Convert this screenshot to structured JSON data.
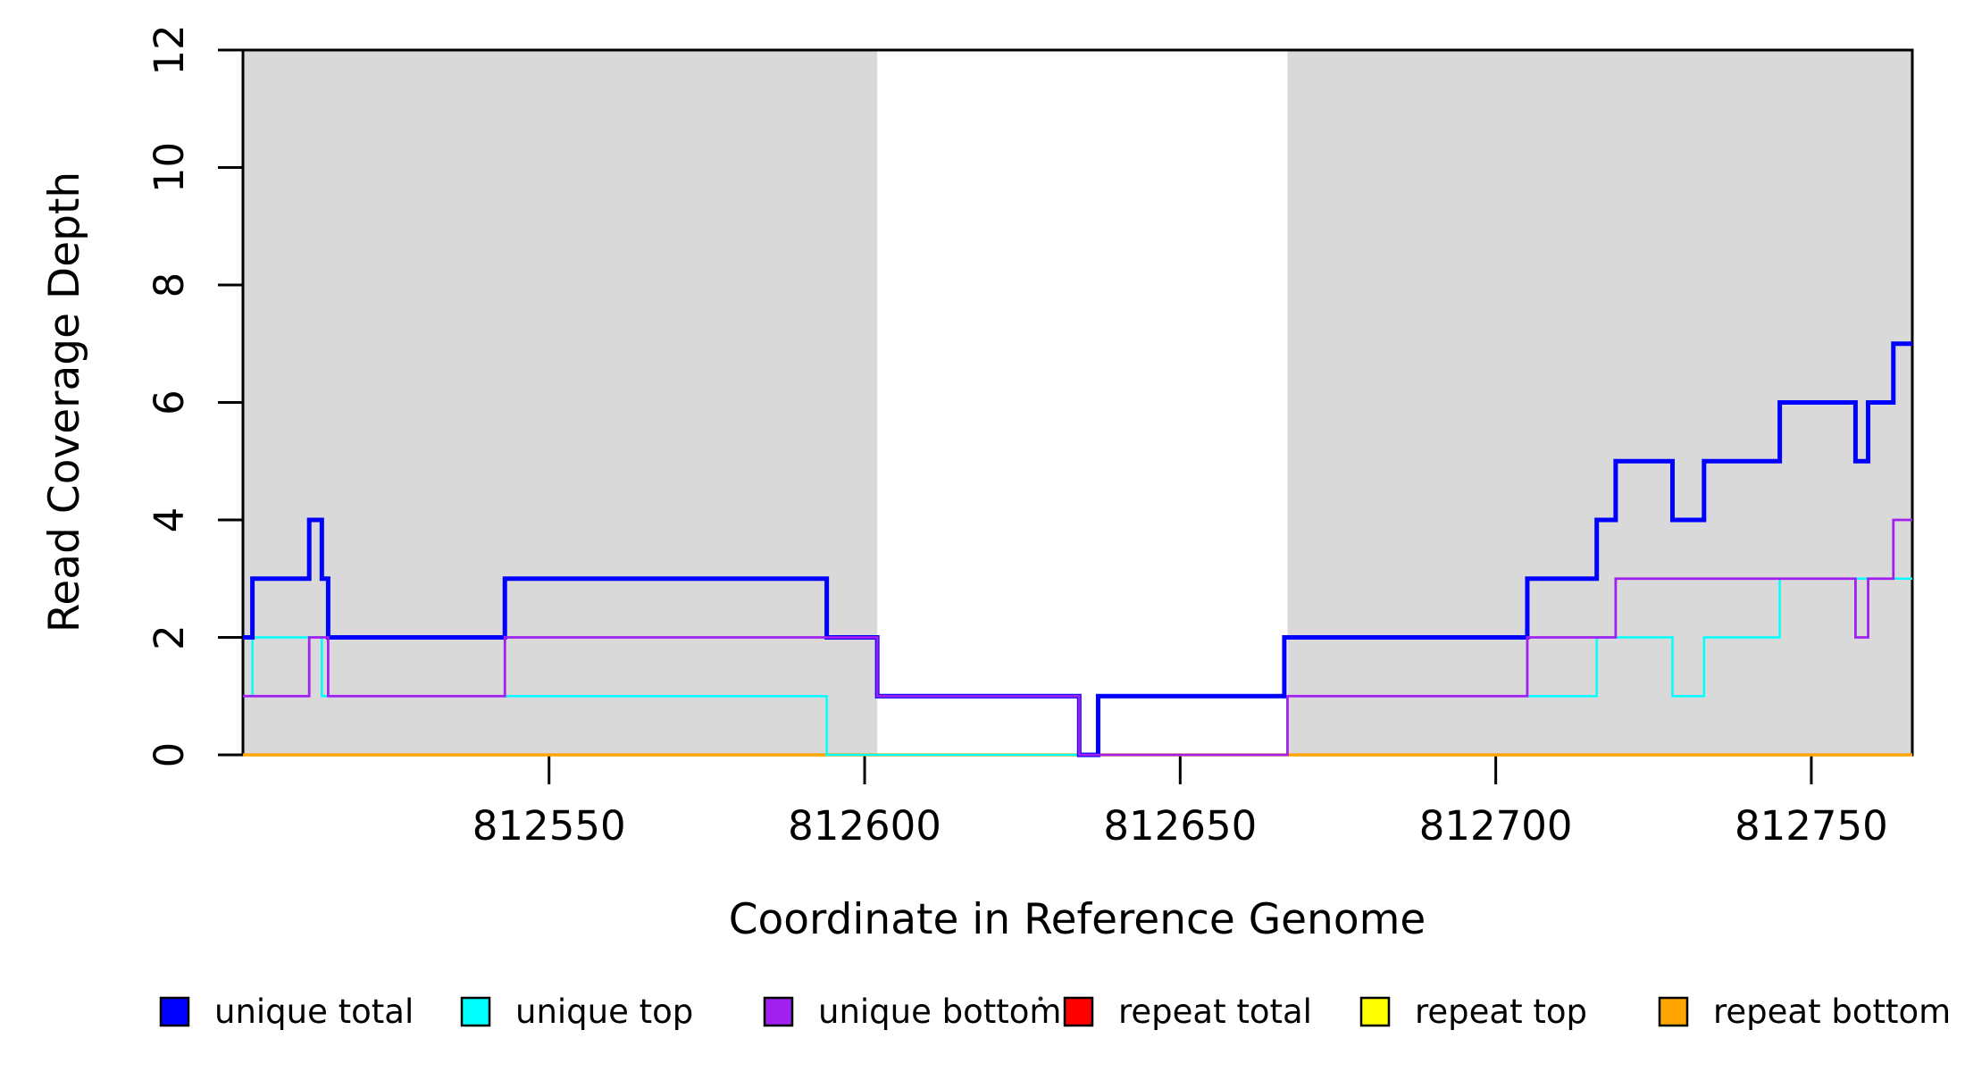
{
  "chart_data": {
    "type": "line",
    "step": true,
    "title": "",
    "xlabel": "Coordinate in Reference Genome",
    "ylabel": "Read Coverage Depth",
    "xlim": [
      812501.5,
      812766
    ],
    "ylim": [
      0,
      12
    ],
    "x_ticks": [
      812550,
      812600,
      812650,
      812700,
      812750
    ],
    "y_ticks": [
      0,
      2,
      4,
      6,
      8,
      10,
      12
    ],
    "grid": false,
    "legend_position": "bottom",
    "shaded_region_color": "#D9D9D9",
    "shaded_regions": [
      [
        812501.5,
        812602
      ],
      [
        812667,
        812766
      ]
    ],
    "series": [
      {
        "name": "unique total",
        "color": "#0000FF",
        "width": 5,
        "points": [
          [
            812501.5,
            2
          ],
          [
            812503,
            3
          ],
          [
            812512,
            4
          ],
          [
            812514,
            3
          ],
          [
            812515,
            2
          ],
          [
            812543,
            3
          ],
          [
            812594,
            2
          ],
          [
            812602,
            1
          ],
          [
            812634,
            0
          ],
          [
            812637,
            1
          ],
          [
            812666.5,
            2
          ],
          [
            812705,
            3
          ],
          [
            812716,
            4
          ],
          [
            812719,
            5
          ],
          [
            812728,
            4
          ],
          [
            812733,
            5
          ],
          [
            812745,
            6
          ],
          [
            812757,
            5
          ],
          [
            812759,
            6
          ],
          [
            812763,
            7
          ]
        ]
      },
      {
        "name": "unique top",
        "color": "#00FFFF",
        "width": 2.5,
        "points": [
          [
            812501.5,
            1
          ],
          [
            812503,
            2
          ],
          [
            812514,
            1
          ],
          [
            812594,
            0
          ],
          [
            812637,
            1
          ],
          [
            812716,
            2
          ],
          [
            812728,
            1
          ],
          [
            812733,
            2
          ],
          [
            812745,
            3
          ]
        ]
      },
      {
        "name": "unique bottom",
        "color": "#A020F0",
        "width": 2.8,
        "points": [
          [
            812501.5,
            1
          ],
          [
            812512,
            2
          ],
          [
            812515,
            1
          ],
          [
            812543,
            2
          ],
          [
            812602,
            1
          ],
          [
            812634,
            0
          ],
          [
            812667,
            1
          ],
          [
            812705,
            2
          ],
          [
            812719,
            3
          ],
          [
            812757,
            2
          ],
          [
            812759,
            3
          ],
          [
            812763,
            4
          ]
        ]
      },
      {
        "name": "repeat total",
        "color": "#FF0000",
        "width": 2.5,
        "points": [
          [
            812501.5,
            0
          ]
        ]
      },
      {
        "name": "repeat top",
        "color": "#FFFF00",
        "width": 2.5,
        "points": [
          [
            812501.5,
            0
          ]
        ]
      },
      {
        "name": "repeat bottom",
        "color": "#FFA500",
        "width": 3.5,
        "points": [
          [
            812501.5,
            0
          ]
        ]
      }
    ],
    "draw_order": [
      "repeat total",
      "repeat top",
      "repeat bottom",
      "unique top",
      "unique total",
      "unique bottom"
    ]
  },
  "axis": {
    "x_tick_labels": [
      "812550",
      "812600",
      "812650",
      "812700",
      "812750"
    ],
    "y_tick_labels": [
      "0",
      "2",
      "4",
      "6",
      "8",
      "10",
      "12"
    ]
  },
  "legend": {
    "items": [
      {
        "label": "unique total",
        "color": "#0000FF"
      },
      {
        "label": "unique top",
        "color": "#00FFFF"
      },
      {
        "label": "unique bottom",
        "color": "#A020F0"
      },
      {
        "label": "repeat total",
        "color": "#FF0000"
      },
      {
        "label": "repeat top",
        "color": "#FFFF00"
      },
      {
        "label": "repeat bottom",
        "color": "#FFA500"
      }
    ]
  }
}
